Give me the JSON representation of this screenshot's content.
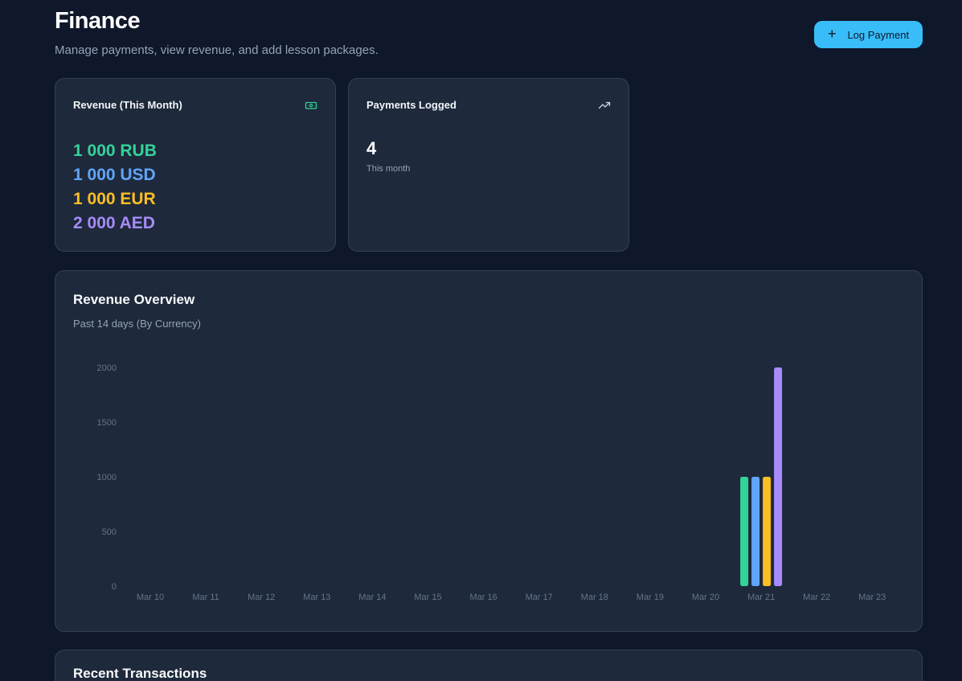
{
  "header": {
    "title": "Finance",
    "subtitle": "Manage payments, view revenue, and add lesson packages.",
    "log_payment_label": "Log Payment",
    "log_payment_icon": "plus-icon"
  },
  "revenue_card": {
    "title": "Revenue (This Month)",
    "icon": "banknote-icon",
    "lines": [
      {
        "text": "1 000 RUB",
        "color": "#34d399"
      },
      {
        "text": "1 000 USD",
        "color": "#60a5fa"
      },
      {
        "text": "1 000 EUR",
        "color": "#fbbf24"
      },
      {
        "text": "2 000 AED",
        "color": "#a78bfa"
      }
    ]
  },
  "payments_card": {
    "title": "Payments Logged",
    "icon": "trending-up-icon",
    "count": "4",
    "note": "This month"
  },
  "chart": {
    "title": "Revenue Overview",
    "subtitle": "Past 14 days (By Currency)"
  },
  "chart_data": {
    "type": "bar",
    "categories": [
      "Mar 10",
      "Mar 11",
      "Mar 12",
      "Mar 13",
      "Mar 14",
      "Mar 15",
      "Mar 16",
      "Mar 17",
      "Mar 18",
      "Mar 19",
      "Mar 20",
      "Mar 21",
      "Mar 22",
      "Mar 23"
    ],
    "series": [
      {
        "color": "#34d399",
        "values": [
          0,
          0,
          0,
          0,
          0,
          0,
          0,
          0,
          0,
          0,
          0,
          1000,
          0,
          0
        ]
      },
      {
        "color": "#60a5fa",
        "values": [
          0,
          0,
          0,
          0,
          0,
          0,
          0,
          0,
          0,
          0,
          0,
          1000,
          0,
          0
        ]
      },
      {
        "color": "#fbbf24",
        "values": [
          0,
          0,
          0,
          0,
          0,
          0,
          0,
          0,
          0,
          0,
          0,
          1000,
          0,
          0
        ]
      },
      {
        "color": "#a78bfa",
        "values": [
          0,
          0,
          0,
          0,
          0,
          0,
          0,
          0,
          0,
          0,
          0,
          2000,
          0,
          0
        ]
      }
    ],
    "yticks": [
      0,
      500,
      1000,
      1500,
      2000
    ],
    "ylim": [
      0,
      2000
    ],
    "grid": false,
    "legend": "none"
  },
  "transactions": {
    "title": "Recent Transactions"
  }
}
